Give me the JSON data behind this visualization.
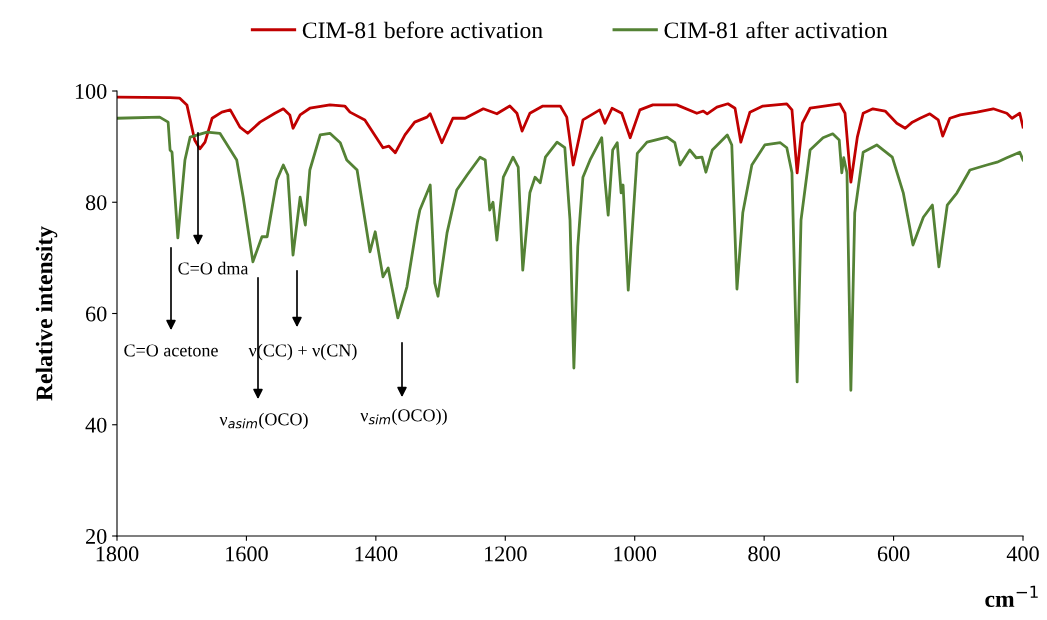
{
  "chart_data": {
    "type": "line",
    "xlabel": "cm$^{−1}$",
    "ylabel": "Relative intensity",
    "xlim": [
      1800,
      400
    ],
    "ylim": [
      20,
      100
    ],
    "xticks": [
      1800,
      1600,
      1400,
      1200,
      1000,
      800,
      600,
      400
    ],
    "yticks": [
      20,
      40,
      60,
      80,
      100
    ],
    "grid": false,
    "legend": "top",
    "marker": "none",
    "line_style": "solid",
    "series": [
      {
        "name": "CIM-81 before activation",
        "color": "#c00000",
        "x": [
          1800,
          1718,
          1703,
          1692,
          1680,
          1672,
          1664,
          1653,
          1638,
          1625,
          1610,
          1598,
          1579,
          1556,
          1543,
          1533,
          1528,
          1517,
          1502,
          1471,
          1448,
          1440,
          1417,
          1389,
          1380,
          1370,
          1355,
          1340,
          1321,
          1316,
          1298,
          1281,
          1262,
          1234,
          1213,
          1193,
          1182,
          1174,
          1162,
          1142,
          1115,
          1105,
          1095,
          1080,
          1054,
          1046,
          1035,
          1020,
          1007,
          992,
          972,
          935,
          904,
          894,
          888,
          873,
          856,
          845,
          836,
          822,
          802,
          765,
          757,
          749,
          741,
          729,
          683,
          675,
          666,
          656,
          647,
          632,
          613,
          595,
          582,
          571,
          559,
          544,
          531,
          524,
          513,
          497,
          471,
          446,
          425,
          417,
          405,
          400
        ],
        "values": [
          98.9,
          98.8,
          98.7,
          97.5,
          91.2,
          89.6,
          90.8,
          95.1,
          96.2,
          96.6,
          93.5,
          92.4,
          94.4,
          96.0,
          96.8,
          95.7,
          93.3,
          95.7,
          96.9,
          97.5,
          97.3,
          96.2,
          94.8,
          89.8,
          90.1,
          88.9,
          92.1,
          94.4,
          95.3,
          95.9,
          90.7,
          95.1,
          95.1,
          96.8,
          95.9,
          97.3,
          96.0,
          92.8,
          96.0,
          97.3,
          97.3,
          95.3,
          86.7,
          94.8,
          96.6,
          94.2,
          96.9,
          96.0,
          91.6,
          96.6,
          97.5,
          97.5,
          96.0,
          96.4,
          95.9,
          97.1,
          97.7,
          96.9,
          90.8,
          96.2,
          97.3,
          97.7,
          96.6,
          85.3,
          94.2,
          96.9,
          97.7,
          96.0,
          83.6,
          91.7,
          96.0,
          96.8,
          96.4,
          94.2,
          93.3,
          94.4,
          95.1,
          95.9,
          94.8,
          91.9,
          95.1,
          95.7,
          96.2,
          96.8,
          96.0,
          95.1,
          96.0,
          93.5
        ]
      },
      {
        "name": "CIM-81 after activation",
        "color": "#548235",
        "x": [
          1800,
          1734,
          1721,
          1718,
          1715,
          1706,
          1695,
          1687,
          1661,
          1641,
          1615,
          1605,
          1590,
          1576,
          1568,
          1553,
          1543,
          1536,
          1528,
          1517,
          1509,
          1502,
          1486,
          1471,
          1455,
          1445,
          1429,
          1409,
          1401,
          1389,
          1381,
          1366,
          1352,
          1336,
          1332,
          1316,
          1309,
          1304,
          1290,
          1275,
          1259,
          1239,
          1231,
          1224,
          1219,
          1213,
          1203,
          1188,
          1180,
          1173,
          1162,
          1154,
          1146,
          1138,
          1120,
          1108,
          1100,
          1094,
          1088,
          1080,
          1069,
          1051,
          1046,
          1041,
          1034,
          1027,
          1021,
          1018,
          1010,
          996,
          981,
          950,
          938,
          930,
          915,
          905,
          896,
          890,
          880,
          857,
          850,
          842,
          833,
          819,
          799,
          775,
          765,
          757,
          749,
          743,
          729,
          709,
          694,
          684,
          680,
          677,
          672,
          666,
          660,
          647,
          626,
          602,
          585,
          570,
          554,
          540,
          530,
          517,
          502,
          482,
          456,
          440,
          425,
          405,
          400
        ],
        "values": [
          95.1,
          95.3,
          94.4,
          89.4,
          89.0,
          73.6,
          87.6,
          91.7,
          92.6,
          92.4,
          87.6,
          80.9,
          69.3,
          73.8,
          73.8,
          84.0,
          86.7,
          84.9,
          70.5,
          80.9,
          75.9,
          85.8,
          92.1,
          92.4,
          90.7,
          87.6,
          85.8,
          71.1,
          74.7,
          66.6,
          68.2,
          59.2,
          64.8,
          76.3,
          78.6,
          83.1,
          65.5,
          63.1,
          74.5,
          82.2,
          84.9,
          88.1,
          87.6,
          78.6,
          80.0,
          73.2,
          84.5,
          88.1,
          86.3,
          67.8,
          81.7,
          84.5,
          83.5,
          88.1,
          90.8,
          89.8,
          76.8,
          50.2,
          72.0,
          84.5,
          87.6,
          91.6,
          84.0,
          77.7,
          89.4,
          90.7,
          81.7,
          83.1,
          64.2,
          88.8,
          90.8,
          91.7,
          90.7,
          86.7,
          89.4,
          88.0,
          88.1,
          85.4,
          89.4,
          92.1,
          90.3,
          64.4,
          78.1,
          86.7,
          90.3,
          90.7,
          89.8,
          85.3,
          47.7,
          76.8,
          89.4,
          91.6,
          92.3,
          91.2,
          85.3,
          88.0,
          85.3,
          46.2,
          78.1,
          89.0,
          90.3,
          88.1,
          81.7,
          72.3,
          77.3,
          79.5,
          68.4,
          79.5,
          81.7,
          85.8,
          86.7,
          87.2,
          88.0,
          89.0,
          87.6
        ]
      }
    ],
    "annotations": [
      "C=O dma",
      "C=O acetone",
      "ν$_{asim}$(OCO)",
      "ν(CC) + ν(CN)",
      "ν$_{sim}$(OCO))"
    ]
  }
}
